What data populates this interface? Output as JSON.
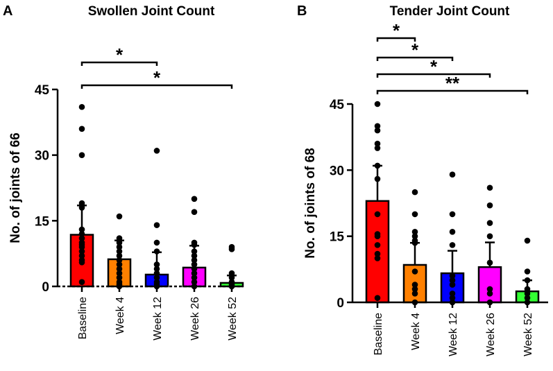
{
  "chart_data": [
    {
      "type": "bar",
      "panel_label": "A",
      "title": "Swollen Joint Count",
      "ylabel": "No. of joints of 66",
      "xlabel": "",
      "ylim": [
        0,
        45
      ],
      "yticks": [
        0,
        15,
        30,
        45
      ],
      "categories": [
        "Baseline",
        "Week 4",
        "Week 12",
        "Week 26",
        "Week 52"
      ],
      "colors": [
        "#ff0000",
        "#ff8000",
        "#0000ff",
        "#ff00ff",
        "#33ff33"
      ],
      "values": [
        11.8,
        6.2,
        2.7,
        4.3,
        0.8
      ],
      "error_upper": [
        18.5,
        10.5,
        7.8,
        9.3,
        2.5
      ],
      "points": [
        [
          41,
          36,
          30,
          19,
          18,
          13,
          12,
          11,
          10,
          9.5,
          9,
          8,
          7,
          6,
          5.5,
          1
        ],
        [
          16,
          11,
          10.5,
          10,
          9,
          8,
          7,
          6,
          5,
          4,
          3,
          2,
          1,
          0.5,
          0
        ],
        [
          31,
          14,
          10,
          8,
          5,
          4,
          3,
          2,
          1,
          0.5,
          0
        ],
        [
          20,
          17,
          10,
          9.5,
          8,
          7,
          6,
          5,
          4,
          3,
          2,
          1,
          0
        ],
        [
          9,
          8.5,
          3,
          2,
          1,
          0.5,
          0
        ]
      ],
      "significance": [
        {
          "from": "Baseline",
          "to": "Week 12",
          "label": "*"
        },
        {
          "from": "Baseline",
          "to": "Week 52",
          "label": "*"
        }
      ],
      "grid": false
    },
    {
      "type": "bar",
      "panel_label": "B",
      "title": "Tender Joint Count",
      "ylabel": "No. of joints of 68",
      "xlabel": "",
      "ylim": [
        0,
        45
      ],
      "yticks": [
        0,
        15,
        30,
        45
      ],
      "categories": [
        "Baseline",
        "Week 4",
        "Week 12",
        "Week 26",
        "Week 52"
      ],
      "colors": [
        "#ff0000",
        "#ff8000",
        "#0000ff",
        "#ff00ff",
        "#33ff33"
      ],
      "values": [
        23,
        8.5,
        6.6,
        8,
        2.5
      ],
      "error_upper": [
        31,
        13.5,
        11.7,
        13.6,
        5
      ],
      "points": [
        [
          45,
          40,
          39,
          36,
          35,
          31,
          28,
          20,
          15.5,
          15,
          13,
          11,
          10,
          1
        ],
        [
          25,
          20,
          16,
          15,
          14,
          13.5,
          7,
          4,
          3,
          2,
          0
        ],
        [
          29,
          20,
          16,
          13,
          6,
          5,
          4,
          2,
          1,
          0
        ],
        [
          26,
          22,
          18,
          15,
          9,
          3,
          2,
          0
        ],
        [
          14,
          7,
          5,
          3,
          2,
          1,
          0
        ]
      ],
      "significance": [
        {
          "from": "Baseline",
          "to": "Week 4",
          "label": "*"
        },
        {
          "from": "Baseline",
          "to": "Week 12",
          "label": "*"
        },
        {
          "from": "Baseline",
          "to": "Week 26",
          "label": "*"
        },
        {
          "from": "Baseline",
          "to": "Week 52",
          "label": "**"
        }
      ],
      "grid": false
    }
  ]
}
